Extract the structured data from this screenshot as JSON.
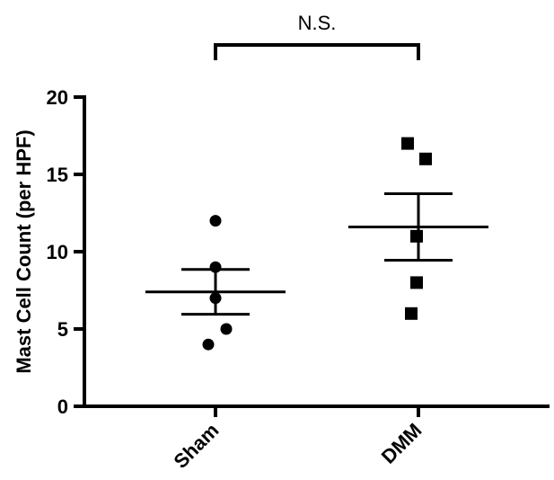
{
  "chart_data": {
    "type": "scatter",
    "title": "",
    "xlabel": "",
    "ylabel": "Mast Cell Count (per HPF)",
    "ylim": [
      0,
      20
    ],
    "yticks": [
      0,
      5,
      10,
      15,
      20
    ],
    "categories": [
      "Sham",
      "DMM"
    ],
    "series": [
      {
        "category": "Sham",
        "marker": "circle",
        "values": [
          12,
          9,
          7,
          5,
          4
        ],
        "mean": 7.4,
        "sem_low": 5.95,
        "sem_high": 8.85
      },
      {
        "category": "DMM",
        "marker": "square",
        "values": [
          17,
          16,
          11,
          8,
          6
        ],
        "mean": 11.6,
        "sem_low": 9.45,
        "sem_high": 13.75
      }
    ],
    "annotation": {
      "text": "N.S.",
      "between": [
        "Sham",
        "DMM"
      ]
    },
    "grid": false,
    "legend": "none"
  }
}
